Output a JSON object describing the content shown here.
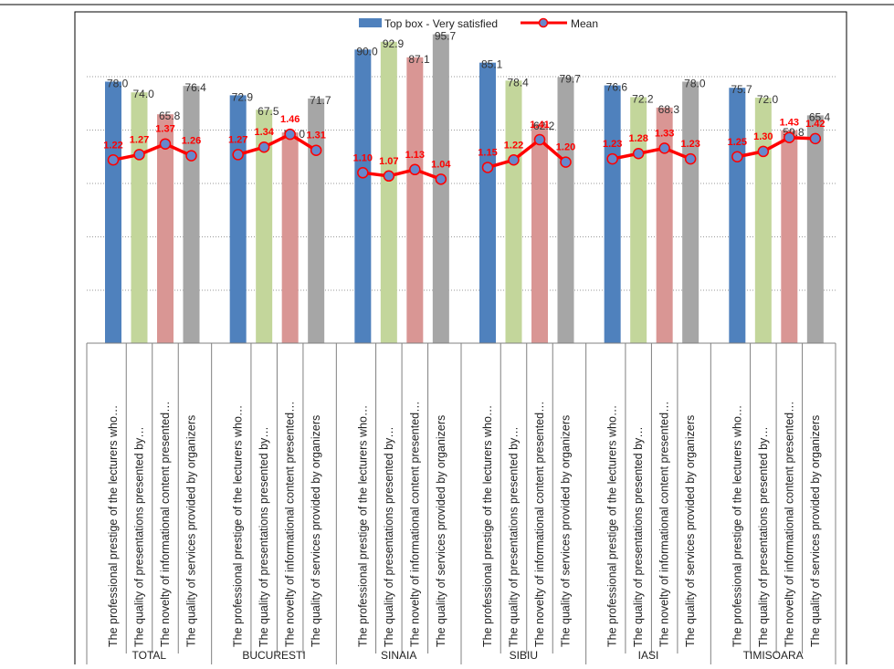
{
  "chart_data": {
    "type": "bar",
    "groups": [
      "TOTAL",
      "BUCURESTI",
      "SINAIA",
      "SIBIU",
      "IASI",
      "TIMISOARA"
    ],
    "categories": [
      "The professional prestige of the lecturers who…",
      "The quality of presentations presented by…",
      "The novelty of informational content presented…",
      "The quality of services provided by organizers"
    ],
    "series": [
      {
        "name": "Top box - Very satisfied",
        "type": "bar",
        "colors": [
          "#4f81bd",
          "#c3d69b",
          "#d99694",
          "#a6a6a6"
        ],
        "values": [
          [
            78.0,
            74.0,
            65.8,
            76.4
          ],
          [
            72.9,
            67.5,
            59.0,
            71.7
          ],
          [
            90.0,
            92.9,
            87.1,
            95.7
          ],
          [
            85.1,
            78.4,
            62.2,
            79.7
          ],
          [
            76.6,
            72.2,
            68.3,
            78.0
          ],
          [
            75.7,
            72.0,
            59.8,
            65.4
          ]
        ],
        "labels": [
          [
            "78.0",
            "74.0",
            "65.8",
            "76.4"
          ],
          [
            "72.9",
            "67.5",
            "59.0",
            "71.7"
          ],
          [
            "90.0",
            "92.9",
            "87.1",
            "95.7"
          ],
          [
            "85.1",
            "78.4",
            "62.2",
            "79.7"
          ],
          [
            "76.6",
            "72.2",
            "68.3",
            "78.0"
          ],
          [
            "75.7",
            "72.0",
            "59.8",
            "65.4"
          ]
        ]
      },
      {
        "name": "Mean",
        "type": "line",
        "color": "#ff0000",
        "marker_color": "#6688cc",
        "values": [
          [
            1.22,
            1.27,
            1.37,
            1.26
          ],
          [
            1.27,
            1.34,
            1.46,
            1.31
          ],
          [
            1.1,
            1.07,
            1.13,
            1.04
          ],
          [
            1.15,
            1.22,
            1.41,
            1.2
          ],
          [
            1.23,
            1.28,
            1.33,
            1.23
          ],
          [
            1.25,
            1.3,
            1.43,
            1.42
          ]
        ],
        "labels": [
          [
            "1.22",
            "1.27",
            "1.37",
            "1.26"
          ],
          [
            "1.27",
            "1.34",
            "1.46",
            "1.31"
          ],
          [
            "1.10",
            "1.07",
            "1.13",
            "1.04"
          ],
          [
            "1.15",
            "1.22",
            "1.41",
            "1.20"
          ],
          [
            "1.23",
            "1.28",
            "1.33",
            "1.23"
          ],
          [
            "1.25",
            "1.30",
            "1.43",
            "1.42"
          ]
        ]
      }
    ],
    "ylim_bars": [
      -20,
      100
    ],
    "ylim_mean": [
      -1,
      2
    ],
    "grid": true,
    "legend": "top-center"
  }
}
